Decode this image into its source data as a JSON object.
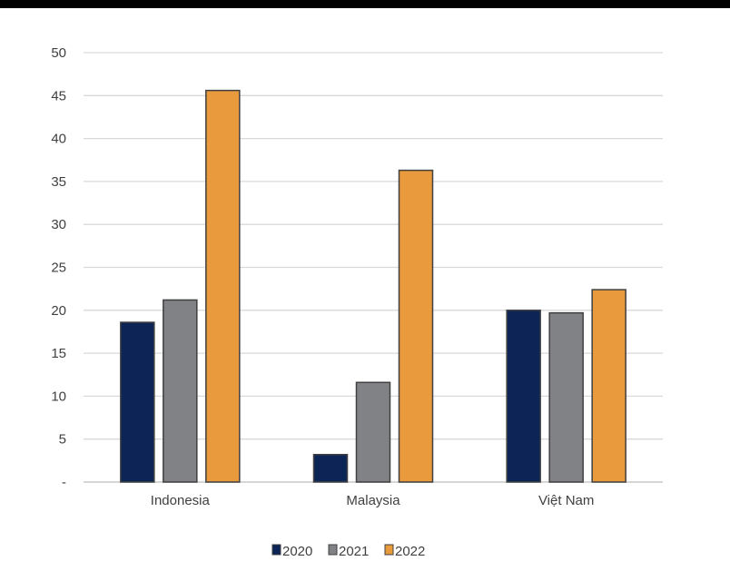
{
  "chart_data": {
    "type": "bar",
    "categories": [
      "Indonesia",
      "Malaysia",
      "Việt Nam"
    ],
    "series": [
      {
        "name": "2020",
        "color": "#0d2456",
        "values": [
          18.6,
          3.2,
          20.0
        ]
      },
      {
        "name": "2021",
        "color": "#808285",
        "values": [
          21.2,
          11.6,
          19.7
        ]
      },
      {
        "name": "2022",
        "color": "#e89a3c",
        "values": [
          45.6,
          36.3,
          22.4
        ]
      }
    ],
    "ylim": [
      0,
      50
    ],
    "yticks": [
      0,
      5,
      10,
      15,
      20,
      25,
      30,
      35,
      40,
      45,
      50
    ],
    "ytick_labels": [
      "-",
      "5",
      "10",
      "15",
      "20",
      "25",
      "30",
      "35",
      "40",
      "45",
      "50"
    ],
    "grid": true,
    "legend": "bottom",
    "title": "",
    "xlabel": "",
    "ylabel": ""
  }
}
